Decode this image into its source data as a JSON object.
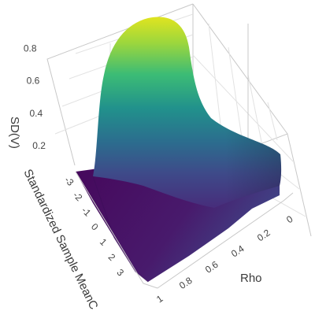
{
  "chart_data": {
    "type": "surface",
    "colorscale": "viridis",
    "colors": [
      "#440154",
      "#3b528b",
      "#21918c",
      "#5ec962",
      "#fde725"
    ],
    "x_axis": {
      "label": "Rho",
      "ticks": [
        "0",
        "0.2",
        "0.4",
        "0.6",
        "0.8",
        "1"
      ],
      "range": [
        0,
        1
      ]
    },
    "y_axis": {
      "label": "Standardized Sample MeanC",
      "ticks": [
        "-3",
        "-2",
        "-1",
        "0",
        "1",
        "2",
        "3"
      ],
      "range": [
        -3,
        3
      ]
    },
    "z_axis": {
      "label": "SD(V)",
      "ticks": [
        "0.2",
        "0.4",
        "0.6",
        "0.8"
      ],
      "range": [
        0,
        0.9
      ]
    },
    "surface_description": "SD(V) is 0 at Rho=0 and peaks near 0.9 at Rho=1 when the standardized sample mean is near -3; it decreases as the standardized sample mean increases toward 3.",
    "key_points": [
      {
        "rho": 0,
        "mean": -3,
        "sd": 0.0
      },
      {
        "rho": 1,
        "mean": -3,
        "sd": 0.9
      },
      {
        "rho": 1,
        "mean": 3,
        "sd": 0.0
      },
      {
        "rho": 0,
        "mean": 3,
        "sd": 0.0
      }
    ]
  }
}
